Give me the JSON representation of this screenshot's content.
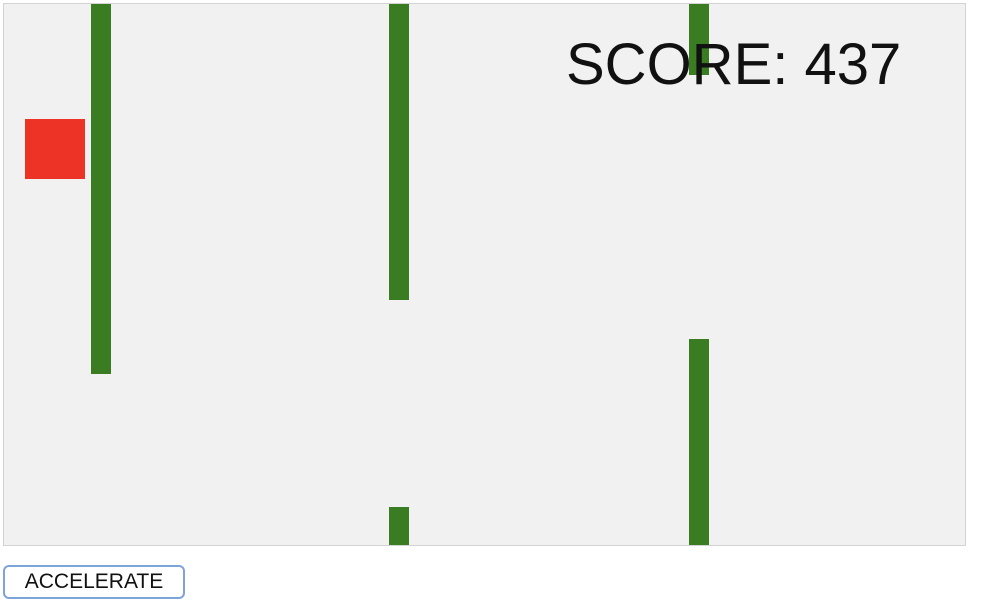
{
  "game": {
    "score_text": "SCORE: 437",
    "colors": {
      "background": "#f1f1f1",
      "pipe": "#3a7c22",
      "player": "#ec3326",
      "score": "#111111"
    }
  },
  "controls": {
    "accelerate_label": "ACCELERATE"
  }
}
